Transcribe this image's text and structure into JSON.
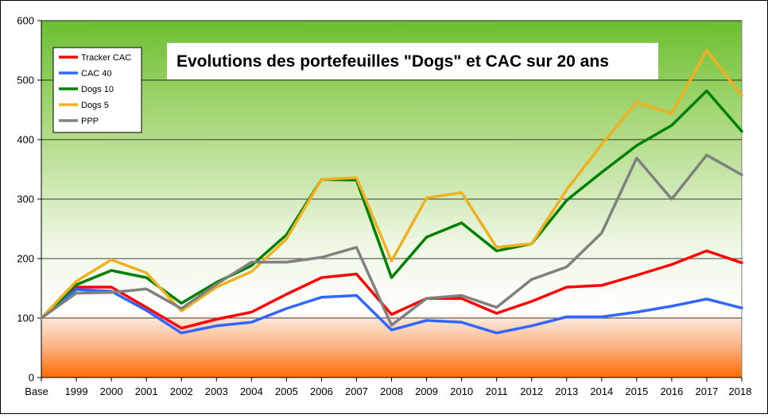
{
  "chart_data": {
    "type": "line",
    "title": "Evolutions des portefeuilles \"Dogs\" et CAC sur  20 ans",
    "xlabel": "",
    "ylabel": "",
    "categories": [
      "Base",
      "1999",
      "2000",
      "2001",
      "2002",
      "2003",
      "2004",
      "2005",
      "2006",
      "2007",
      "2008",
      "2009",
      "2010",
      "2011",
      "2012",
      "2013",
      "2014",
      "2015",
      "2016",
      "2017",
      "2018"
    ],
    "ylim": [
      0,
      600
    ],
    "yticks": [
      0,
      100,
      200,
      300,
      400,
      500,
      600
    ],
    "grid": "horizontal",
    "legend_position": "top-left",
    "background": "gradient green (top) to white to orange (bottom, below 100)",
    "series": [
      {
        "name": "Tracker CAC",
        "color": "#ff0000",
        "values": [
          100,
          152,
          152,
          118,
          83,
          98,
          110,
          140,
          168,
          174,
          106,
          133,
          133,
          108,
          128,
          152,
          155,
          172,
          190,
          213,
          193
        ]
      },
      {
        "name": "CAC 40",
        "color": "#3366ff",
        "values": [
          100,
          148,
          145,
          113,
          75,
          87,
          93,
          116,
          135,
          138,
          80,
          96,
          93,
          75,
          87,
          102,
          102,
          110,
          120,
          132,
          117
        ]
      },
      {
        "name": "Dogs 10",
        "color": "#008000",
        "values": [
          100,
          156,
          180,
          168,
          125,
          160,
          188,
          240,
          333,
          332,
          168,
          236,
          260,
          213,
          225,
          298,
          345,
          390,
          424,
          482,
          414
        ]
      },
      {
        "name": "Dogs 5",
        "color": "#f0b020",
        "values": [
          100,
          162,
          198,
          176,
          112,
          152,
          178,
          233,
          333,
          336,
          196,
          302,
          311,
          219,
          225,
          316,
          392,
          463,
          444,
          550,
          474
        ]
      },
      {
        "name": "PPP",
        "color": "#808080",
        "values": [
          100,
          142,
          143,
          149,
          116,
          157,
          194,
          194,
          202,
          219,
          88,
          133,
          138,
          118,
          165,
          186,
          243,
          369,
          300,
          374,
          341
        ]
      }
    ]
  }
}
